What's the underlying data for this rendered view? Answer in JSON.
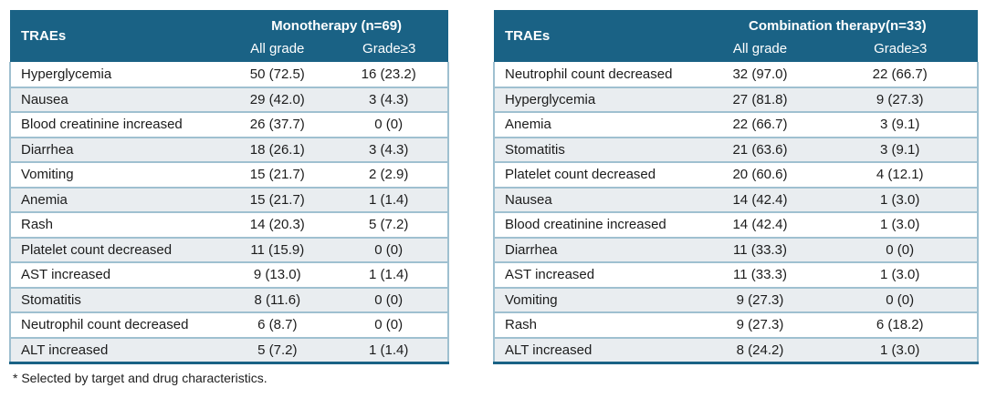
{
  "colors": {
    "header_bg": "#1A6285",
    "header_text": "#FFFFFF",
    "row_bg": "#FFFFFF",
    "row_alt_bg": "#E9EDF0",
    "separator": "#9FC0D0",
    "bottom_border": "#1A6285",
    "text_color": "#1C1C1C"
  },
  "tables": [
    {
      "id": "monotherapy",
      "traes_label": "TRAEs",
      "group_label": "Monotherapy (n=69)",
      "col_headers": [
        "All grade",
        "Grade≥3"
      ],
      "rows": [
        {
          "name": "Hyperglycemia",
          "all_grade": "50 (72.5)",
          "grade_ge3": "16 (23.2)"
        },
        {
          "name": "Nausea",
          "all_grade": "29 (42.0)",
          "grade_ge3": "3 (4.3)"
        },
        {
          "name": "Blood creatinine increased",
          "all_grade": "26 (37.7)",
          "grade_ge3": "0 (0)"
        },
        {
          "name": "Diarrhea",
          "all_grade": "18 (26.1)",
          "grade_ge3": "3 (4.3)"
        },
        {
          "name": "Vomiting",
          "all_grade": "15 (21.7)",
          "grade_ge3": "2 (2.9)"
        },
        {
          "name": "Anemia",
          "all_grade": "15 (21.7)",
          "grade_ge3": "1 (1.4)"
        },
        {
          "name": "Rash",
          "all_grade": "14 (20.3)",
          "grade_ge3": "5 (7.2)"
        },
        {
          "name": "Platelet count decreased",
          "all_grade": "11 (15.9)",
          "grade_ge3": "0 (0)"
        },
        {
          "name": "AST increased",
          "all_grade": "9 (13.0)",
          "grade_ge3": "1 (1.4)"
        },
        {
          "name": "Stomatitis",
          "all_grade": "8 (11.6)",
          "grade_ge3": "0 (0)"
        },
        {
          "name": "Neutrophil count decreased",
          "all_grade": "6 (8.7)",
          "grade_ge3": "0 (0)"
        },
        {
          "name": "ALT increased",
          "all_grade": "5 (7.2)",
          "grade_ge3": "1 (1.4)"
        }
      ]
    },
    {
      "id": "combination",
      "traes_label": "TRAEs",
      "group_label": "Combination therapy(n=33)",
      "col_headers": [
        "All grade",
        "Grade≥3"
      ],
      "rows": [
        {
          "name": "Neutrophil count decreased",
          "all_grade": "32 (97.0)",
          "grade_ge3": "22 (66.7)"
        },
        {
          "name": "Hyperglycemia",
          "all_grade": "27 (81.8)",
          "grade_ge3": "9 (27.3)"
        },
        {
          "name": "Anemia",
          "all_grade": "22 (66.7)",
          "grade_ge3": "3 (9.1)"
        },
        {
          "name": "Stomatitis",
          "all_grade": "21 (63.6)",
          "grade_ge3": "3 (9.1)"
        },
        {
          "name": "Platelet count decreased",
          "all_grade": "20 (60.6)",
          "grade_ge3": "4 (12.1)"
        },
        {
          "name": "Nausea",
          "all_grade": "14 (42.4)",
          "grade_ge3": "1 (3.0)"
        },
        {
          "name": "Blood creatinine increased",
          "all_grade": "14 (42.4)",
          "grade_ge3": "1 (3.0)"
        },
        {
          "name": "Diarrhea",
          "all_grade": "11 (33.3)",
          "grade_ge3": "0 (0)"
        },
        {
          "name": "AST increased",
          "all_grade": "11 (33.3)",
          "grade_ge3": "1 (3.0)"
        },
        {
          "name": "Vomiting",
          "all_grade": "9 (27.3)",
          "grade_ge3": "0 (0)"
        },
        {
          "name": "Rash",
          "all_grade": "9 (27.3)",
          "grade_ge3": "6 (18.2)"
        },
        {
          "name": "ALT increased",
          "all_grade": "8 (24.2)",
          "grade_ge3": "1 (3.0)"
        }
      ]
    }
  ],
  "footnote": "* Selected by target and drug characteristics."
}
